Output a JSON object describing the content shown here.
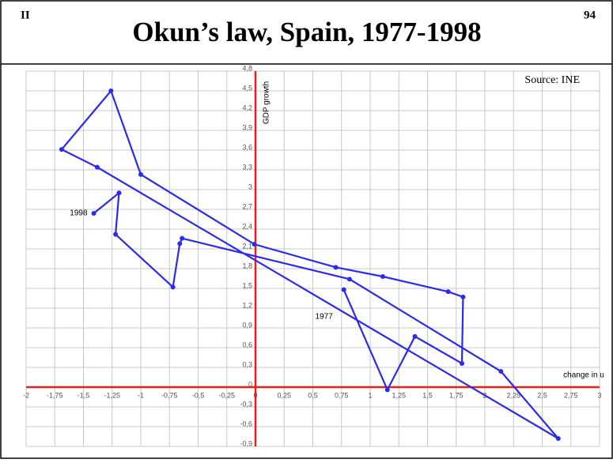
{
  "section": "II",
  "page_number": "94",
  "chart_data": {
    "type": "line",
    "title": "Okun’s law, Spain, 1977-1998",
    "xlabel": "change in u",
    "ylabel": "GDP growth",
    "annotations": [
      "Source: INE",
      "1977",
      "1998"
    ],
    "color": "#2b2bea",
    "axis_color": "#e8201c",
    "grid": true,
    "x": [
      0.77,
      1.15,
      1.39,
      1.8,
      1.81,
      1.68,
      1.11,
      0.7,
      -0.01,
      -1.0,
      -1.26,
      -1.69,
      -1.38,
      2.64,
      2.14,
      0.82,
      -0.64,
      -0.66,
      -0.72,
      -1.22,
      -1.19,
      -1.41
    ],
    "values": [
      1.48,
      -0.04,
      0.77,
      0.36,
      1.37,
      1.45,
      1.68,
      1.82,
      2.17,
      3.23,
      4.5,
      3.61,
      3.34,
      -0.78,
      0.24,
      1.64,
      2.26,
      2.18,
      1.52,
      2.32,
      2.95,
      2.64
    ],
    "xlim": [
      -2,
      3
    ],
    "ylim": [
      -0.9,
      4.8
    ],
    "xticks": [
      -2,
      {
        "value": -1.75,
        "label": "-1,75"
      },
      {
        "value": -1.5,
        "label": "-1,5"
      },
      {
        "value": -1.25,
        "label": "-1,25"
      },
      -1,
      {
        "value": -0.75,
        "label": "-0,75"
      },
      {
        "value": -0.5,
        "label": "-0,5"
      },
      {
        "value": -0.25,
        "label": "-0,25"
      },
      0,
      {
        "value": 0.25,
        "label": "0,25"
      },
      {
        "value": 0.5,
        "label": "0,5"
      },
      {
        "value": 0.75,
        "label": "0,75"
      },
      1,
      {
        "value": 1.25,
        "label": "1,25"
      },
      {
        "value": 1.5,
        "label": "1,5"
      },
      {
        "value": 1.75,
        "label": "1,75"
      },
      2,
      {
        "value": 2.25,
        "label": "2,25"
      },
      {
        "value": 2.5,
        "label": "2,5"
      },
      {
        "value": 2.75,
        "label": "2,75"
      },
      3
    ],
    "yticks": [
      {
        "value": 4.8,
        "label": "4,8"
      },
      {
        "value": 4.5,
        "label": "4,5"
      },
      {
        "value": 4.2,
        "label": "4,2"
      },
      {
        "value": 3.9,
        "label": "3,9"
      },
      {
        "value": 3.6,
        "label": "3,6"
      },
      {
        "value": 3.3,
        "label": "3,3"
      },
      3,
      {
        "value": 2.7,
        "label": "2,7"
      },
      {
        "value": 2.4,
        "label": "2,4"
      },
      {
        "value": 2.1,
        "label": "2,1"
      },
      {
        "value": 1.8,
        "label": "1,8"
      },
      {
        "value": 1.5,
        "label": "1,5"
      },
      {
        "value": 1.2,
        "label": "1,2"
      },
      {
        "value": 0.9,
        "label": "0,9"
      },
      {
        "value": 0.6,
        "label": "0,6"
      },
      {
        "value": 0.3,
        "label": "0,3"
      },
      0,
      {
        "value": -0.3,
        "label": "-0,3"
      },
      {
        "value": -0.6,
        "label": "-0,6"
      },
      {
        "value": -0.9,
        "label": "-0,9"
      }
    ]
  }
}
